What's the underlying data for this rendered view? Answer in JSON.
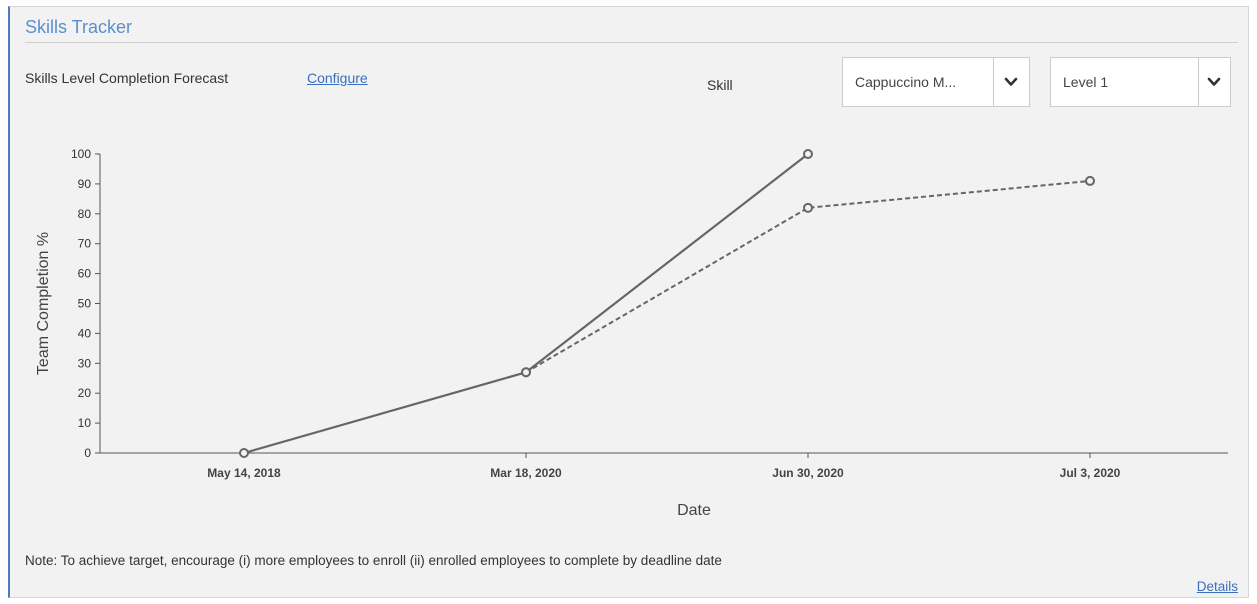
{
  "panel": {
    "title": "Skills Tracker",
    "subtitle": "Skills Level Completion Forecast",
    "configure_label": "Configure"
  },
  "filters": {
    "skill_label": "Skill",
    "skill_value": "Cappuccino M...",
    "level_value": "Level 1"
  },
  "note": "Note: To achieve target, encourage (i) more employees to enroll (ii) enrolled employees to complete by deadline date",
  "details_label": "Details",
  "colors": {
    "accent": "#5a8fd0",
    "link": "#3a6fbf",
    "line": "#666666",
    "axis": "#555555"
  },
  "chart_data": {
    "type": "line",
    "xlabel": "Date",
    "ylabel": "Team Completion %",
    "ylim": [
      0,
      100
    ],
    "yticks": [
      0,
      10,
      20,
      30,
      40,
      50,
      60,
      70,
      80,
      90,
      100
    ],
    "categories": [
      "May 14, 2018",
      "Mar 18, 2020",
      "Jun 30, 2020",
      "Jul 3, 2020"
    ],
    "grid": false,
    "series": [
      {
        "style": "solid",
        "values": [
          0,
          27,
          100,
          null
        ]
      },
      {
        "style": "dashed",
        "values": [
          null,
          27,
          82,
          91
        ]
      }
    ]
  }
}
